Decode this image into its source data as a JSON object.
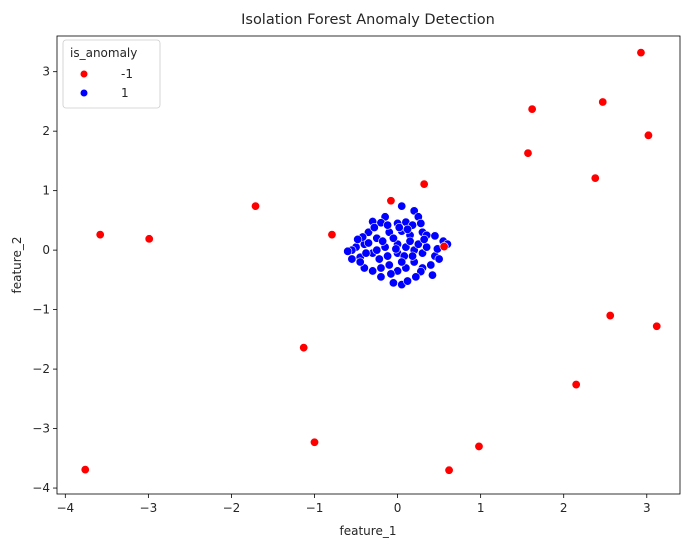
{
  "chart_data": {
    "type": "scatter",
    "title": "Isolation Forest Anomaly Detection",
    "xlabel": "feature_1",
    "ylabel": "feature_2",
    "xlim": [
      -4.1,
      3.4
    ],
    "ylim": [
      -4.1,
      3.6
    ],
    "xticks": [
      -4,
      -3,
      -2,
      -1,
      0,
      1,
      2,
      3
    ],
    "yticks": [
      -4,
      -3,
      -2,
      -1,
      0,
      1,
      2,
      3
    ],
    "grid": false,
    "legend": {
      "title": "is_anomaly",
      "position": "top-left",
      "entries": [
        {
          "label": "-1",
          "color": "#ff0000"
        },
        {
          "label": "1",
          "color": "#0000ff"
        }
      ]
    },
    "series": [
      {
        "name": "-1",
        "color": "#ff0000",
        "points": [
          [
            2.93,
            3.32
          ],
          [
            1.62,
            2.37
          ],
          [
            2.47,
            2.49
          ],
          [
            3.02,
            1.93
          ],
          [
            1.57,
            1.63
          ],
          [
            2.38,
            1.21
          ],
          [
            0.32,
            1.11
          ],
          [
            -1.71,
            0.74
          ],
          [
            -0.08,
            0.83
          ],
          [
            -0.79,
            0.26
          ],
          [
            -3.58,
            0.26
          ],
          [
            -2.99,
            0.19
          ],
          [
            0.56,
            0.06
          ],
          [
            2.56,
            -1.1
          ],
          [
            3.12,
            -1.28
          ],
          [
            -1.13,
            -1.64
          ],
          [
            2.15,
            -2.26
          ],
          [
            -1.0,
            -3.23
          ],
          [
            0.98,
            -3.3
          ],
          [
            0.62,
            -3.7
          ],
          [
            -3.76,
            -3.69
          ]
        ]
      },
      {
        "name": "1",
        "color": "#0000ff",
        "points": [
          [
            0.05,
            0.74
          ],
          [
            -0.15,
            0.56
          ],
          [
            0.2,
            0.66
          ],
          [
            0.25,
            0.56
          ],
          [
            0.1,
            0.47
          ],
          [
            0.0,
            0.45
          ],
          [
            -0.2,
            0.46
          ],
          [
            -0.3,
            0.48
          ],
          [
            0.18,
            0.42
          ],
          [
            0.3,
            0.3
          ],
          [
            0.35,
            0.25
          ],
          [
            0.45,
            0.24
          ],
          [
            0.55,
            0.15
          ],
          [
            -0.35,
            0.3
          ],
          [
            -0.1,
            0.3
          ],
          [
            0.05,
            0.32
          ],
          [
            0.15,
            0.25
          ],
          [
            -0.25,
            0.2
          ],
          [
            -0.4,
            0.1
          ],
          [
            -0.5,
            0.05
          ],
          [
            -0.55,
            0.0
          ],
          [
            -0.6,
            -0.02
          ],
          [
            -0.45,
            -0.12
          ],
          [
            -0.3,
            -0.05
          ],
          [
            -0.15,
            0.05
          ],
          [
            0.0,
            0.1
          ],
          [
            0.1,
            0.05
          ],
          [
            0.2,
            0.0
          ],
          [
            0.3,
            -0.05
          ],
          [
            0.45,
            -0.1
          ],
          [
            0.5,
            -0.15
          ],
          [
            0.4,
            -0.25
          ],
          [
            0.3,
            -0.3
          ],
          [
            0.2,
            -0.2
          ],
          [
            0.1,
            -0.3
          ],
          [
            0.0,
            -0.35
          ],
          [
            -0.1,
            -0.25
          ],
          [
            -0.2,
            -0.3
          ],
          [
            -0.3,
            -0.35
          ],
          [
            -0.4,
            -0.3
          ],
          [
            -0.45,
            -0.2
          ],
          [
            -0.55,
            -0.15
          ],
          [
            -0.2,
            -0.45
          ],
          [
            -0.05,
            -0.55
          ],
          [
            0.05,
            -0.58
          ],
          [
            0.12,
            -0.52
          ],
          [
            0.42,
            -0.42
          ],
          [
            0.28,
            -0.36
          ],
          [
            -0.35,
            0.12
          ],
          [
            -0.25,
            0.0
          ],
          [
            -0.12,
            -0.1
          ],
          [
            0.0,
            -0.05
          ],
          [
            0.08,
            -0.1
          ],
          [
            0.15,
            0.15
          ],
          [
            0.25,
            0.1
          ],
          [
            -0.05,
            0.2
          ],
          [
            -0.18,
            0.15
          ],
          [
            0.35,
            0.05
          ],
          [
            0.05,
            -0.2
          ],
          [
            -0.08,
            -0.4
          ],
          [
            0.22,
            -0.45
          ],
          [
            -0.28,
            0.38
          ],
          [
            0.12,
            0.35
          ],
          [
            -0.42,
            0.22
          ],
          [
            0.48,
            0.02
          ],
          [
            -0.02,
            0.02
          ],
          [
            0.18,
            -0.1
          ],
          [
            -0.22,
            -0.15
          ],
          [
            0.32,
            0.18
          ],
          [
            -0.38,
            -0.05
          ],
          [
            0.02,
            0.38
          ],
          [
            -0.12,
            0.42
          ],
          [
            0.28,
            0.45
          ],
          [
            -0.48,
            0.18
          ],
          [
            0.6,
            0.1
          ]
        ]
      }
    ]
  }
}
